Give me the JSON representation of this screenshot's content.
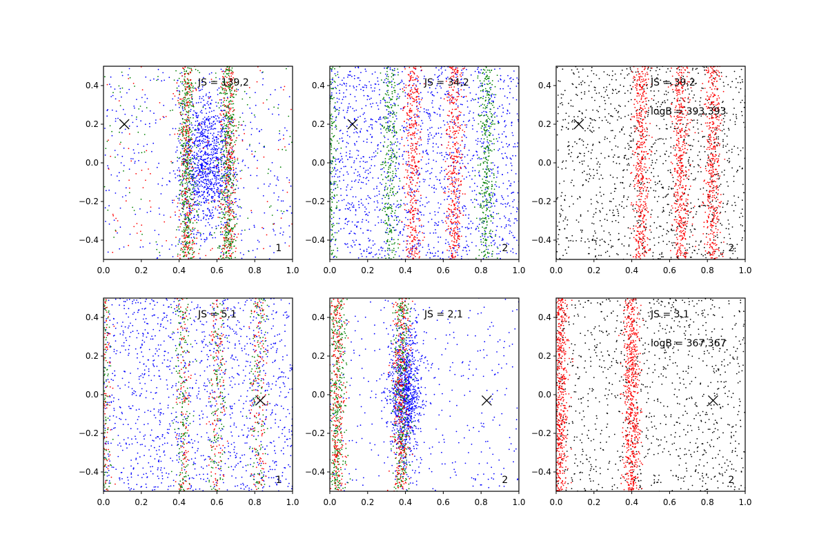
{
  "chart_data": [
    {
      "type": "scatter",
      "xlim": [
        0.0,
        1.0
      ],
      "ylim": [
        -0.5,
        0.5
      ],
      "xticks": [
        "0.0",
        "0.2",
        "0.4",
        "0.6",
        "0.8",
        "1.0"
      ],
      "yticks": [
        "−0.4",
        "−0.2",
        "0.0",
        "0.2",
        "0.4"
      ],
      "annotations": [
        "JS = 139,2"
      ],
      "panel_label": "1",
      "marker": {
        "x": 0.11,
        "y": 0.2
      },
      "series": [
        {
          "color": "#0000ff",
          "description": "broad band",
          "center_x": 0.55,
          "width": 0.12,
          "density_points": 1400
        },
        {
          "color": "#008000",
          "description": "bands",
          "bands": [
            0.44,
            0.66
          ],
          "points": 900
        },
        {
          "color": "#ff0000",
          "description": "bands",
          "bands": [
            0.44,
            0.66
          ],
          "points": 500
        },
        {
          "color": "#008000",
          "description": "uniform",
          "points": 120
        },
        {
          "color": "#ff0000",
          "description": "uniform",
          "points": 120
        }
      ]
    },
    {
      "type": "scatter",
      "xlim": [
        0.0,
        1.0
      ],
      "ylim": [
        -0.5,
        0.5
      ],
      "xticks": [
        "0.0",
        "0.2",
        "0.4",
        "0.6",
        "0.8",
        "1.0"
      ],
      "yticks": [
        "−0.4",
        "−0.2",
        "0.0",
        "0.2",
        "0.4"
      ],
      "annotations": [
        "JS = 34,2"
      ],
      "panel_label": "2",
      "marker": {
        "x": 0.12,
        "y": 0.2
      },
      "series": [
        {
          "color": "#0000ff",
          "description": "spread",
          "points": 1600
        },
        {
          "color": "#ff0000",
          "description": "bands",
          "bands": [
            0.44,
            0.66
          ],
          "points": 800
        },
        {
          "color": "#008000",
          "description": "bands",
          "bands": [
            0.0,
            0.32,
            0.83
          ],
          "points": 1000
        }
      ]
    },
    {
      "type": "scatter",
      "xlim": [
        0.0,
        1.0
      ],
      "ylim": [
        -0.5,
        0.5
      ],
      "xticks": [
        "0.0",
        "0.2",
        "0.4",
        "0.6",
        "0.8",
        "1.0"
      ],
      "yticks": [
        "−0.4",
        "−0.2",
        "0.0",
        "0.2",
        "0.4"
      ],
      "annotations": [
        "JS = 39,2",
        "logB = 393,393"
      ],
      "panel_label": "2",
      "marker": {
        "x": 0.12,
        "y": 0.2
      },
      "series": [
        {
          "color": "#000000",
          "description": "spread",
          "points": 1200
        },
        {
          "color": "#ff0000",
          "description": "bands",
          "bands": [
            0.45,
            0.66,
            0.83
          ],
          "points": 1400
        }
      ]
    },
    {
      "type": "scatter",
      "xlim": [
        0.0,
        1.0
      ],
      "ylim": [
        -0.5,
        0.5
      ],
      "xticks": [
        "0.0",
        "0.2",
        "0.4",
        "0.6",
        "0.8",
        "1.0"
      ],
      "yticks": [
        "−0.4",
        "−0.2",
        "0.0",
        "0.2",
        "0.4"
      ],
      "annotations": [
        "JS = 5,1"
      ],
      "panel_label": "1",
      "marker": {
        "x": 0.83,
        "y": -0.03
      },
      "series": [
        {
          "color": "#0000ff",
          "description": "uniform",
          "points": 1300
        },
        {
          "color": "#008000",
          "description": "weak bands",
          "bands": [
            0.0,
            0.42,
            0.6,
            0.82
          ],
          "points": 600
        },
        {
          "color": "#ff0000",
          "description": "weak bands",
          "bands": [
            0.0,
            0.42,
            0.6,
            0.82
          ],
          "points": 500
        }
      ]
    },
    {
      "type": "scatter",
      "xlim": [
        0.0,
        1.0
      ],
      "ylim": [
        -0.5,
        0.5
      ],
      "xticks": [
        "0.0",
        "0.2",
        "0.4",
        "0.6",
        "0.8",
        "1.0"
      ],
      "yticks": [
        "−0.4",
        "−0.2",
        "0.0",
        "0.2",
        "0.4"
      ],
      "annotations": [
        "JS = 2,1"
      ],
      "panel_label": "2",
      "marker": {
        "x": 0.83,
        "y": -0.03
      },
      "series": [
        {
          "color": "#0000ff",
          "description": "spread + band",
          "center_x": 0.4,
          "width": 0.07,
          "points": 1300
        },
        {
          "color": "#008000",
          "description": "bands",
          "bands": [
            0.04,
            0.38
          ],
          "points": 700
        },
        {
          "color": "#ff0000",
          "description": "bands",
          "bands": [
            0.04,
            0.38
          ],
          "points": 600
        }
      ]
    },
    {
      "type": "scatter",
      "xlim": [
        0.0,
        1.0
      ],
      "ylim": [
        -0.5,
        0.5
      ],
      "xticks": [
        "0.0",
        "0.2",
        "0.4",
        "0.6",
        "0.8",
        "1.0"
      ],
      "yticks": [
        "−0.4",
        "−0.2",
        "0.0",
        "0.2",
        "0.4"
      ],
      "annotations": [
        "JS = 3,1",
        "logB = 367,367"
      ],
      "panel_label": "2",
      "marker": {
        "x": 0.83,
        "y": -0.03
      },
      "series": [
        {
          "color": "#000000",
          "description": "spread",
          "points": 1000
        },
        {
          "color": "#ff0000",
          "description": "bands",
          "bands": [
            0.02,
            0.4
          ],
          "points": 1300
        }
      ]
    }
  ]
}
